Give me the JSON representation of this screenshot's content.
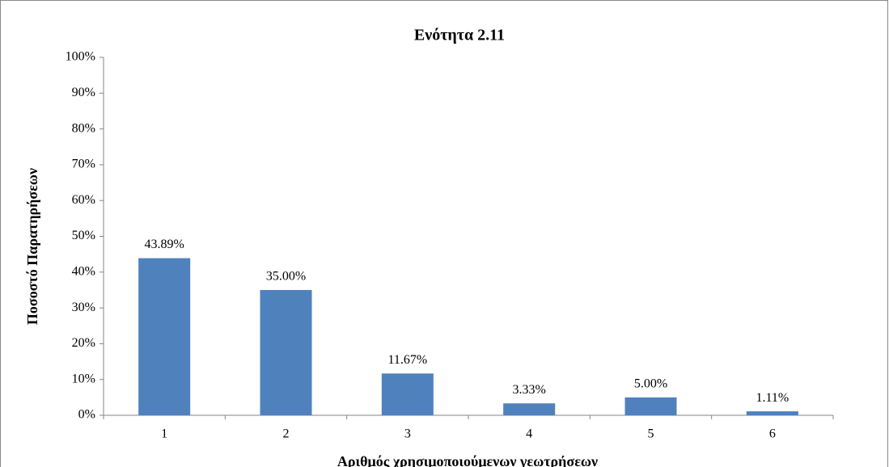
{
  "chart_data": {
    "type": "bar",
    "title": "Ενότητα 2.11",
    "x_label": "Αριθμός χρησιμοποιούμενων γεωτρήσεων",
    "y_label": "Ποσοστό Παρατηρήσεων",
    "categories": [
      "1",
      "2",
      "3",
      "4",
      "5",
      "6"
    ],
    "values": [
      43.89,
      35.0,
      11.67,
      3.33,
      5.0,
      1.11
    ],
    "value_labels": [
      "43.89%",
      "35.00%",
      "11.67%",
      "3.33%",
      "5.00%",
      "1.11%"
    ],
    "color": "#4f81bd",
    "ylim": [
      0,
      100
    ],
    "yticks": [
      {
        "value": 0,
        "label": "0%"
      },
      {
        "value": 10,
        "label": "10%"
      },
      {
        "value": 20,
        "label": "20%"
      },
      {
        "value": 30,
        "label": "30%"
      },
      {
        "value": 40,
        "label": "40%"
      },
      {
        "value": 50,
        "label": "50%"
      },
      {
        "value": 60,
        "label": "60%"
      },
      {
        "value": 70,
        "label": "70%"
      },
      {
        "value": 80,
        "label": "80%"
      },
      {
        "value": 90,
        "label": "90%"
      },
      {
        "value": 100,
        "label": "100%"
      }
    ],
    "grid": false
  }
}
